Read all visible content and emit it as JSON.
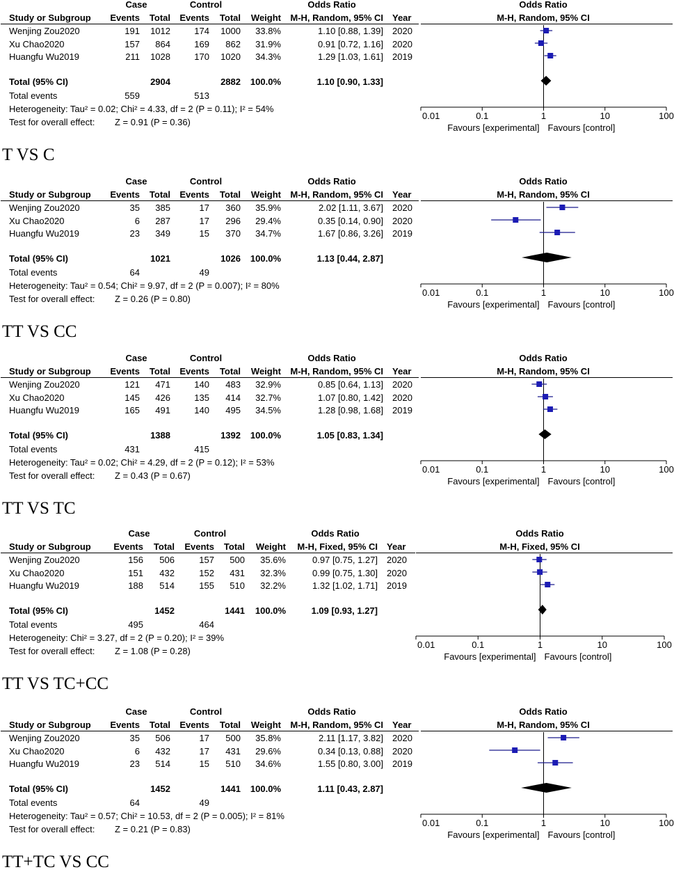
{
  "header_labels": {
    "study": "Study or Subgroup",
    "case": "Case",
    "control": "Control",
    "events": "Events",
    "total": "Total",
    "weight": "Weight",
    "odds_ratio": "Odds Ratio",
    "year": "Year"
  },
  "row_labels": {
    "total_ci": "Total (95% CI)",
    "total_events": "Total events",
    "overall_effect": "Test for overall effect:"
  },
  "axis": {
    "ticks": [
      "0.01",
      "0.1",
      "1",
      "10",
      "100"
    ],
    "favours_left": "Favours [experimental]",
    "favours_right": "Favours [control]"
  },
  "colors": {
    "point": "#1c1cb4",
    "diamond": "#000000"
  },
  "chart_data": [
    {
      "type": "forest",
      "method": "M-H, Random, 95% CI",
      "caption": "T VS C",
      "xscale": "log",
      "xlim": [
        0.01,
        100
      ],
      "studies": [
        {
          "name": "Wenjing Zou2020",
          "case_events": "191",
          "case_total": "1012",
          "ctrl_events": "174",
          "ctrl_total": "1000",
          "weight": "33.8%",
          "ci_text": "1.10 [0.88, 1.39]",
          "year": "2020",
          "or": 1.1,
          "lo": 0.88,
          "hi": 1.39
        },
        {
          "name": "Xu Chao2020",
          "case_events": "157",
          "case_total": "864",
          "ctrl_events": "169",
          "ctrl_total": "862",
          "weight": "31.9%",
          "ci_text": "0.91 [0.72, 1.16]",
          "year": "2020",
          "or": 0.91,
          "lo": 0.72,
          "hi": 1.16
        },
        {
          "name": "Huangfu Wu2019",
          "case_events": "211",
          "case_total": "1028",
          "ctrl_events": "170",
          "ctrl_total": "1020",
          "weight": "34.3%",
          "ci_text": "1.29 [1.03, 1.61]",
          "year": "2019",
          "or": 1.29,
          "lo": 1.03,
          "hi": 1.61
        }
      ],
      "total": {
        "case_total": "2904",
        "ctrl_total": "2882",
        "weight": "100.0%",
        "ci_text": "1.10 [0.90, 1.33]",
        "or": 1.1,
        "lo": 0.9,
        "hi": 1.33,
        "case_events": "559",
        "ctrl_events": "513"
      },
      "heterogeneity": "Heterogeneity: Tau² = 0.02; Chi² = 4.33, df = 2 (P = 0.11); I² = 54%",
      "overall": "Z = 0.91 (P = 0.36)"
    },
    {
      "type": "forest",
      "method": "M-H, Random, 95% CI",
      "caption": "TT VS CC",
      "xscale": "log",
      "xlim": [
        0.01,
        100
      ],
      "studies": [
        {
          "name": "Wenjing Zou2020",
          "case_events": "35",
          "case_total": "385",
          "ctrl_events": "17",
          "ctrl_total": "360",
          "weight": "35.9%",
          "ci_text": "2.02 [1.11, 3.67]",
          "year": "2020",
          "or": 2.02,
          "lo": 1.11,
          "hi": 3.67
        },
        {
          "name": "Xu Chao2020",
          "case_events": "6",
          "case_total": "287",
          "ctrl_events": "17",
          "ctrl_total": "296",
          "weight": "29.4%",
          "ci_text": "0.35 [0.14, 0.90]",
          "year": "2020",
          "or": 0.35,
          "lo": 0.14,
          "hi": 0.9
        },
        {
          "name": "Huangfu Wu2019",
          "case_events": "23",
          "case_total": "349",
          "ctrl_events": "15",
          "ctrl_total": "370",
          "weight": "34.7%",
          "ci_text": "1.67 [0.86, 3.26]",
          "year": "2019",
          "or": 1.67,
          "lo": 0.86,
          "hi": 3.26
        }
      ],
      "total": {
        "case_total": "1021",
        "ctrl_total": "1026",
        "weight": "100.0%",
        "ci_text": "1.13 [0.44, 2.87]",
        "or": 1.13,
        "lo": 0.44,
        "hi": 2.87,
        "case_events": "64",
        "ctrl_events": "49"
      },
      "heterogeneity": "Heterogeneity: Tau² = 0.54; Chi² = 9.97, df = 2 (P = 0.007); I² = 80%",
      "overall": "Z = 0.26 (P = 0.80)"
    },
    {
      "type": "forest",
      "method": "M-H, Random, 95% CI",
      "caption": "TT VS TC",
      "xscale": "log",
      "xlim": [
        0.01,
        100
      ],
      "studies": [
        {
          "name": "Wenjing Zou2020",
          "case_events": "121",
          "case_total": "471",
          "ctrl_events": "140",
          "ctrl_total": "483",
          "weight": "32.9%",
          "ci_text": "0.85 [0.64, 1.13]",
          "year": "2020",
          "or": 0.85,
          "lo": 0.64,
          "hi": 1.13
        },
        {
          "name": "Xu Chao2020",
          "case_events": "145",
          "case_total": "426",
          "ctrl_events": "135",
          "ctrl_total": "414",
          "weight": "32.7%",
          "ci_text": "1.07 [0.80, 1.42]",
          "year": "2020",
          "or": 1.07,
          "lo": 0.8,
          "hi": 1.42
        },
        {
          "name": "Huangfu Wu2019",
          "case_events": "165",
          "case_total": "491",
          "ctrl_events": "140",
          "ctrl_total": "495",
          "weight": "34.5%",
          "ci_text": "1.28 [0.98, 1.68]",
          "year": "2019",
          "or": 1.28,
          "lo": 0.98,
          "hi": 1.68
        }
      ],
      "total": {
        "case_total": "1388",
        "ctrl_total": "1392",
        "weight": "100.0%",
        "ci_text": "1.05 [0.83, 1.34]",
        "or": 1.05,
        "lo": 0.83,
        "hi": 1.34,
        "case_events": "431",
        "ctrl_events": "415"
      },
      "heterogeneity": "Heterogeneity: Tau² = 0.02; Chi² = 4.29, df = 2 (P = 0.12); I² = 53%",
      "overall": "Z = 0.43 (P = 0.67)"
    },
    {
      "type": "forest",
      "method": "M-H, Fixed, 95% CI",
      "caption": "TT VS TC+CC",
      "xscale": "log",
      "xlim": [
        0.01,
        100
      ],
      "studies": [
        {
          "name": "Wenjing Zou2020",
          "case_events": "156",
          "case_total": "506",
          "ctrl_events": "157",
          "ctrl_total": "500",
          "weight": "35.6%",
          "ci_text": "0.97 [0.75, 1.27]",
          "year": "2020",
          "or": 0.97,
          "lo": 0.75,
          "hi": 1.27
        },
        {
          "name": "Xu Chao2020",
          "case_events": "151",
          "case_total": "432",
          "ctrl_events": "152",
          "ctrl_total": "431",
          "weight": "32.3%",
          "ci_text": "0.99 [0.75, 1.30]",
          "year": "2020",
          "or": 0.99,
          "lo": 0.75,
          "hi": 1.3
        },
        {
          "name": "Huangfu Wu2019",
          "case_events": "188",
          "case_total": "514",
          "ctrl_events": "155",
          "ctrl_total": "510",
          "weight": "32.2%",
          "ci_text": "1.32 [1.02, 1.71]",
          "year": "2019",
          "or": 1.32,
          "lo": 1.02,
          "hi": 1.71
        }
      ],
      "total": {
        "case_total": "1452",
        "ctrl_total": "1441",
        "weight": "100.0%",
        "ci_text": "1.09 [0.93, 1.27]",
        "or": 1.09,
        "lo": 0.93,
        "hi": 1.27,
        "case_events": "495",
        "ctrl_events": "464"
      },
      "heterogeneity": "Heterogeneity: Chi² = 3.27, df = 2 (P = 0.20); I² = 39%",
      "overall": "Z = 1.08 (P = 0.28)"
    },
    {
      "type": "forest",
      "method": "M-H, Random, 95% CI",
      "caption": "TT+TC VS CC",
      "xscale": "log",
      "xlim": [
        0.01,
        100
      ],
      "studies": [
        {
          "name": "Wenjing Zou2020",
          "case_events": "35",
          "case_total": "506",
          "ctrl_events": "17",
          "ctrl_total": "500",
          "weight": "35.8%",
          "ci_text": "2.11 [1.17, 3.82]",
          "year": "2020",
          "or": 2.11,
          "lo": 1.17,
          "hi": 3.82
        },
        {
          "name": "Xu Chao2020",
          "case_events": "6",
          "case_total": "432",
          "ctrl_events": "17",
          "ctrl_total": "431",
          "weight": "29.6%",
          "ci_text": "0.34 [0.13, 0.88]",
          "year": "2020",
          "or": 0.34,
          "lo": 0.13,
          "hi": 0.88
        },
        {
          "name": "Huangfu Wu2019",
          "case_events": "23",
          "case_total": "514",
          "ctrl_events": "15",
          "ctrl_total": "510",
          "weight": "34.6%",
          "ci_text": "1.55 [0.80, 3.00]",
          "year": "2019",
          "or": 1.55,
          "lo": 0.8,
          "hi": 3.0
        }
      ],
      "total": {
        "case_total": "1452",
        "ctrl_total": "1441",
        "weight": "100.0%",
        "ci_text": "1.11 [0.43, 2.87]",
        "or": 1.11,
        "lo": 0.43,
        "hi": 2.87,
        "case_events": "64",
        "ctrl_events": "49"
      },
      "heterogeneity": "Heterogeneity: Tau² = 0.57; Chi² = 10.53, df = 2 (P = 0.005); I² = 81%",
      "overall": "Z = 0.21 (P = 0.83)"
    }
  ]
}
